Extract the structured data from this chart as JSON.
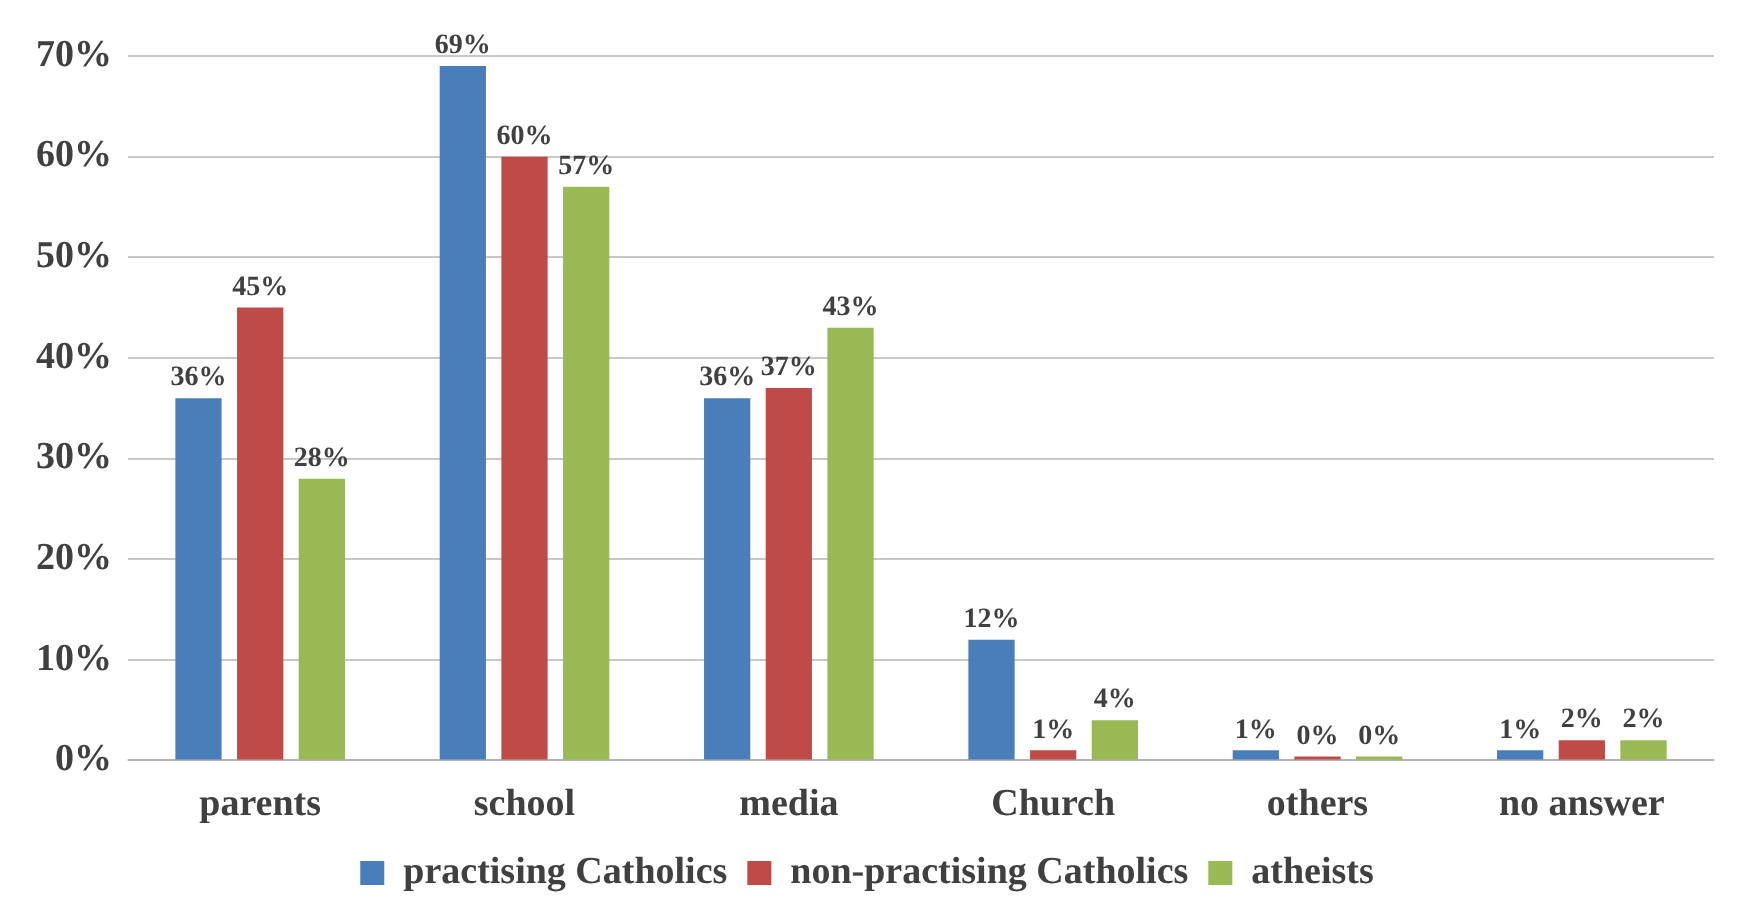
{
  "chart_data": {
    "type": "bar",
    "categories": [
      "parents",
      "school",
      "media",
      "Church",
      "others",
      "no answer"
    ],
    "series": [
      {
        "name": "practising Catholics",
        "color": "#4a7ebb",
        "values": [
          36,
          69,
          36,
          12,
          1,
          1
        ],
        "value_labels": [
          "36%",
          "69%",
          "36%",
          "12%",
          "1%",
          "1%"
        ]
      },
      {
        "name": "non-practising Catholics",
        "color": "#be4b48",
        "values": [
          45,
          60,
          37,
          1,
          0,
          2
        ],
        "value_labels": [
          "45%",
          "60%",
          "37%",
          "1%",
          "0%",
          "2%"
        ]
      },
      {
        "name": "atheists",
        "color": "#98b954",
        "values": [
          28,
          57,
          43,
          4,
          0,
          2
        ],
        "value_labels": [
          "28%",
          "57%",
          "43%",
          "4%",
          "0%",
          "2%"
        ]
      }
    ],
    "ylim": [
      0,
      70
    ],
    "yticks": [
      {
        "value": 0,
        "label": "0%"
      },
      {
        "value": 10,
        "label": "10%"
      },
      {
        "value": 20,
        "label": "20%"
      },
      {
        "value": 30,
        "label": "30%"
      },
      {
        "value": 40,
        "label": "40%"
      },
      {
        "value": 50,
        "label": "50%"
      },
      {
        "value": 60,
        "label": "60%"
      },
      {
        "value": 70,
        "label": "70%"
      }
    ],
    "grid": "y",
    "legend": "bottom"
  }
}
